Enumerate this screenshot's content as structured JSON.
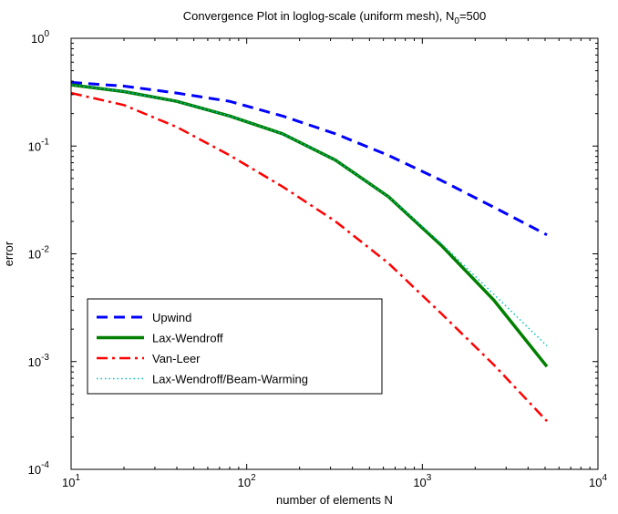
{
  "chart_data": {
    "type": "line",
    "title": "Convergence Plot in loglog-scale (uniform mesh), N",
    "title_subscript": "0",
    "title_suffix": "=500",
    "xlabel": "number of elements N",
    "ylabel": "error",
    "xscale": "log",
    "yscale": "log",
    "xlim": [
      10,
      10000
    ],
    "ylim": [
      0.0001,
      1
    ],
    "x_ticks": [
      {
        "value": 10,
        "base": "10",
        "exp": "1"
      },
      {
        "value": 100,
        "base": "10",
        "exp": "2"
      },
      {
        "value": 1000,
        "base": "10",
        "exp": "3"
      },
      {
        "value": 10000,
        "base": "10",
        "exp": "4"
      }
    ],
    "y_ticks": [
      {
        "value": 0.0001,
        "base": "10",
        "exp": "-4"
      },
      {
        "value": 0.001,
        "base": "10",
        "exp": "-3"
      },
      {
        "value": 0.01,
        "base": "10",
        "exp": "-2"
      },
      {
        "value": 0.1,
        "base": "10",
        "exp": "-1"
      },
      {
        "value": 1,
        "base": "10",
        "exp": "0"
      }
    ],
    "legend_position": "bottom-left",
    "series": [
      {
        "name": "Upwind",
        "color": "#0000ff",
        "style": "dashed",
        "x": [
          10,
          20,
          40,
          80,
          160,
          320,
          640,
          1280,
          2560,
          5120
        ],
        "y": [
          0.39,
          0.36,
          0.31,
          0.26,
          0.19,
          0.13,
          0.082,
          0.048,
          0.027,
          0.015
        ]
      },
      {
        "name": "Lax-Wendroff",
        "color": "#007f00",
        "style": "solid",
        "x": [
          10,
          20,
          40,
          80,
          160,
          320,
          640,
          1280,
          2560,
          5120
        ],
        "y": [
          0.37,
          0.32,
          0.26,
          0.19,
          0.13,
          0.074,
          0.034,
          0.012,
          0.0037,
          0.0009
        ]
      },
      {
        "name": "Van-Leer",
        "color": "#ff0000",
        "style": "dashdot",
        "x": [
          10,
          20,
          40,
          80,
          160,
          320,
          640,
          1280,
          2560,
          5120
        ],
        "y": [
          0.31,
          0.24,
          0.15,
          0.082,
          0.042,
          0.02,
          0.0082,
          0.0028,
          0.00093,
          0.00028
        ]
      },
      {
        "name": "Lax-Wendroff/Beam-Warming",
        "color": "#00bfbf",
        "style": "dotted",
        "x": [
          10,
          20,
          40,
          80,
          160,
          320,
          640,
          1280,
          2560,
          5120
        ],
        "y": [
          0.37,
          0.32,
          0.26,
          0.19,
          0.13,
          0.074,
          0.034,
          0.0125,
          0.0042,
          0.0014
        ]
      }
    ]
  }
}
